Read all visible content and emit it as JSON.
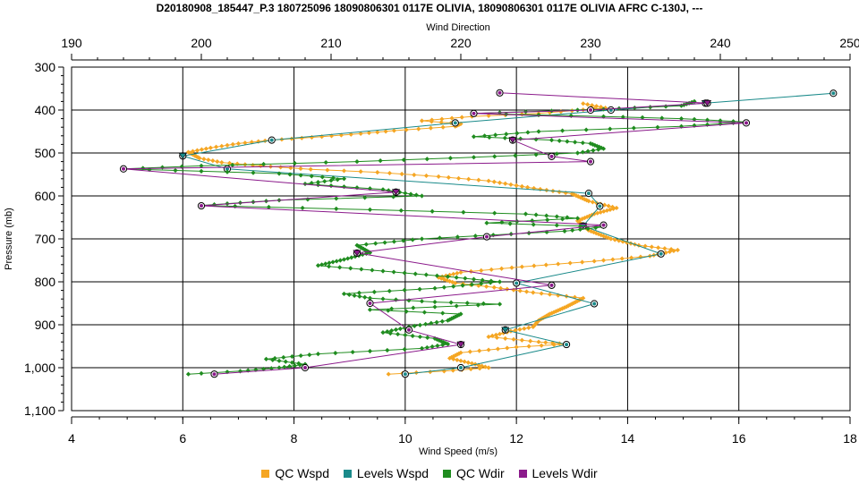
{
  "chart_data": {
    "type": "line",
    "title": "D20180908_185447_P.3 180725096 18090806301 0117E OLIVIA, 18090806301 0117E OLIVIA AFRC C-130J, ---",
    "xlabel": "Wind Speed (m/s)",
    "x2label": "Wind Direction",
    "ylabel": "Pressure (mb)",
    "xlim": [
      4,
      18
    ],
    "x2lim": [
      190,
      250
    ],
    "ylim": [
      300,
      1100
    ],
    "y_inverted": true,
    "grid": true,
    "legend_position": "bottom",
    "x_ticks": [
      "4",
      "6",
      "8",
      "10",
      "12",
      "14",
      "16",
      "18"
    ],
    "x2_ticks": [
      "190",
      "200",
      "210",
      "220",
      "230",
      "240",
      "250"
    ],
    "y_ticks": [
      "300",
      "400",
      "500",
      "600",
      "700",
      "800",
      "900",
      "1,000",
      "1,100"
    ],
    "series": [
      {
        "name": "QC Wspd",
        "axis": "bottom",
        "color": "#f5a623",
        "points": [
          [
            13.2,
            385
          ],
          [
            13.6,
            395
          ],
          [
            12.4,
            408
          ],
          [
            11.2,
            415
          ],
          [
            10.3,
            425
          ],
          [
            11.0,
            432
          ],
          [
            10.9,
            438
          ],
          [
            9.8,
            448
          ],
          [
            9.2,
            455
          ],
          [
            8.5,
            462
          ],
          [
            7.6,
            470
          ],
          [
            7.0,
            478
          ],
          [
            6.5,
            488
          ],
          [
            6.1,
            498
          ],
          [
            6.3,
            512
          ],
          [
            6.7,
            522
          ],
          [
            7.4,
            530
          ],
          [
            8.3,
            538
          ],
          [
            9.5,
            545
          ],
          [
            10.6,
            555
          ],
          [
            11.5,
            565
          ],
          [
            12.2,
            580
          ],
          [
            13.0,
            595
          ],
          [
            13.3,
            612
          ],
          [
            13.8,
            628
          ],
          [
            13.4,
            642
          ],
          [
            13.1,
            658
          ],
          [
            13.3,
            680
          ],
          [
            13.7,
            700
          ],
          [
            14.2,
            715
          ],
          [
            14.9,
            726
          ],
          [
            14.4,
            740
          ],
          [
            13.4,
            752
          ],
          [
            12.1,
            765
          ],
          [
            11.0,
            778
          ],
          [
            10.6,
            790
          ],
          [
            10.9,
            803
          ],
          [
            11.6,
            813
          ],
          [
            12.3,
            825
          ],
          [
            13.2,
            838
          ],
          [
            12.9,
            858
          ],
          [
            12.6,
            875
          ],
          [
            12.4,
            890
          ],
          [
            12.3,
            905
          ],
          [
            11.9,
            915
          ],
          [
            11.5,
            928
          ],
          [
            12.4,
            940
          ],
          [
            12.9,
            945
          ],
          [
            12.0,
            952
          ],
          [
            11.0,
            965
          ],
          [
            10.8,
            978
          ],
          [
            11.2,
            990
          ],
          [
            11.5,
            1000
          ],
          [
            10.7,
            1008
          ],
          [
            9.7,
            1015
          ]
        ]
      },
      {
        "name": "Levels Wspd",
        "axis": "bottom",
        "color": "#1a8a8a",
        "points": [
          [
            17.7,
            361
          ],
          [
            15.4,
            384
          ],
          [
            13.7,
            400
          ],
          [
            10.9,
            430
          ],
          [
            7.6,
            470
          ],
          [
            6.0,
            507
          ],
          [
            6.8,
            537
          ],
          [
            13.3,
            594
          ],
          [
            13.5,
            624
          ],
          [
            13.2,
            670
          ],
          [
            14.6,
            735
          ],
          [
            12.0,
            803
          ],
          [
            13.4,
            851
          ],
          [
            11.8,
            912
          ],
          [
            12.9,
            946
          ],
          [
            11.0,
            1000
          ],
          [
            10.0,
            1015
          ]
        ]
      },
      {
        "name": "QC Wdir",
        "axis": "top",
        "color": "#1f8c1f",
        "points": [
          [
            238,
            380
          ],
          [
            237,
            390
          ],
          [
            231,
            398
          ],
          [
            221,
            408
          ],
          [
            231,
            415
          ],
          [
            237,
            420
          ],
          [
            242,
            428
          ],
          [
            237,
            438
          ],
          [
            226,
            450
          ],
          [
            221,
            462
          ],
          [
            227,
            470
          ],
          [
            230,
            478
          ],
          [
            231,
            490
          ],
          [
            229,
            500
          ],
          [
            221,
            510
          ],
          [
            212,
            520
          ],
          [
            200,
            530
          ],
          [
            194,
            537
          ],
          [
            206,
            548
          ],
          [
            211,
            560
          ],
          [
            208,
            572
          ],
          [
            214,
            585
          ],
          [
            217,
            600
          ],
          [
            206,
            610
          ],
          [
            200,
            622
          ],
          [
            213,
            632
          ],
          [
            225,
            642
          ],
          [
            229,
            652
          ],
          [
            222,
            663
          ],
          [
            231,
            672
          ],
          [
            228,
            682
          ],
          [
            217,
            700
          ],
          [
            212,
            715
          ],
          [
            213,
            732
          ],
          [
            211,
            748
          ],
          [
            209,
            762
          ],
          [
            214,
            775
          ],
          [
            219,
            788
          ],
          [
            223,
            800
          ],
          [
            218,
            815
          ],
          [
            211,
            828
          ],
          [
            213,
            838
          ],
          [
            218,
            847
          ],
          [
            223,
            852
          ],
          [
            213,
            865
          ],
          [
            220,
            875
          ],
          [
            219,
            890
          ],
          [
            216,
            905
          ],
          [
            214,
            918
          ],
          [
            218,
            932
          ],
          [
            219,
            945
          ],
          [
            217,
            955
          ],
          [
            209,
            968
          ],
          [
            205,
            980
          ],
          [
            208,
            992
          ],
          [
            206,
            1000
          ],
          [
            203,
            1008
          ],
          [
            199,
            1015
          ]
        ]
      },
      {
        "name": "Levels Wdir",
        "axis": "top",
        "color": "#8b1a8b",
        "points": [
          [
            223,
            360
          ],
          [
            239,
            384
          ],
          [
            230,
            400
          ],
          [
            221,
            408
          ],
          [
            242,
            430
          ],
          [
            224,
            470
          ],
          [
            227,
            508
          ],
          [
            230,
            520
          ],
          [
            194,
            537
          ],
          [
            215,
            591
          ],
          [
            200,
            623
          ],
          [
            231,
            668
          ],
          [
            222,
            695
          ],
          [
            212,
            733
          ],
          [
            227,
            808
          ],
          [
            213,
            850
          ],
          [
            216,
            912
          ],
          [
            220,
            946
          ],
          [
            208,
            1000
          ],
          [
            201,
            1015
          ]
        ]
      }
    ]
  }
}
